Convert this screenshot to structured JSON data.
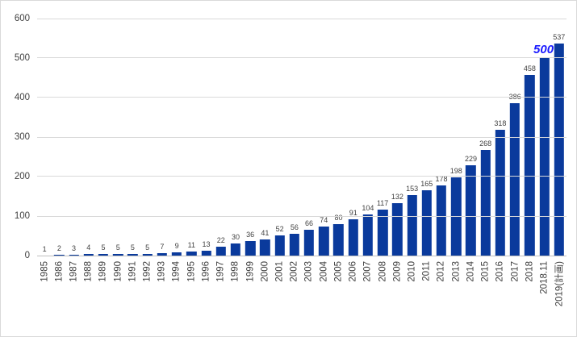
{
  "chart_data": {
    "type": "bar",
    "title": "",
    "xlabel": "",
    "ylabel": "",
    "categories": [
      "1985",
      "1986",
      "1987",
      "1988",
      "1989",
      "1990",
      "1991",
      "1992",
      "1993",
      "1994",
      "1995",
      "1996",
      "1997",
      "1998",
      "1999",
      "2000",
      "2001",
      "2002",
      "2003",
      "2004",
      "2005",
      "2006",
      "2007",
      "2008",
      "2009",
      "2010",
      "2011",
      "2012",
      "2013",
      "2014",
      "2015",
      "2016",
      "2017",
      "2018",
      "2018.11",
      "2019(計画)"
    ],
    "values": [
      1,
      2,
      3,
      4,
      5,
      5,
      5,
      5,
      7,
      9,
      11,
      13,
      22,
      30,
      36,
      41,
      52,
      56,
      66,
      74,
      80,
      91,
      104,
      117,
      132,
      153,
      165,
      178,
      198,
      229,
      268,
      318,
      386,
      458,
      500,
      537
    ],
    "value_labels": [
      "1",
      "2",
      "3",
      "4",
      "5",
      "5",
      "5",
      "5",
      "7",
      "9",
      "11",
      "13",
      "22",
      "30",
      "36",
      "41",
      "52",
      "56",
      "66",
      "74",
      "80",
      "91",
      "104",
      "117",
      "132",
      "153",
      "165",
      "178",
      "198",
      "229",
      "268",
      "318",
      "386",
      "458",
      "500",
      "537"
    ],
    "highlight": {
      "index": 34,
      "label": "500",
      "color": "#1A1AFF"
    },
    "ylim": [
      0,
      600
    ],
    "yticks": [
      "0",
      "100",
      "200",
      "300",
      "400",
      "500",
      "600"
    ],
    "grid": "horizontal-on",
    "legend": "none",
    "colors": {
      "bar": "#0A3A9C",
      "label": "#404040",
      "gridline": "#D9D9D9",
      "axis_line": "#BFBFBF",
      "border": "#D9D9D9",
      "background": "#FFFFFF"
    }
  }
}
